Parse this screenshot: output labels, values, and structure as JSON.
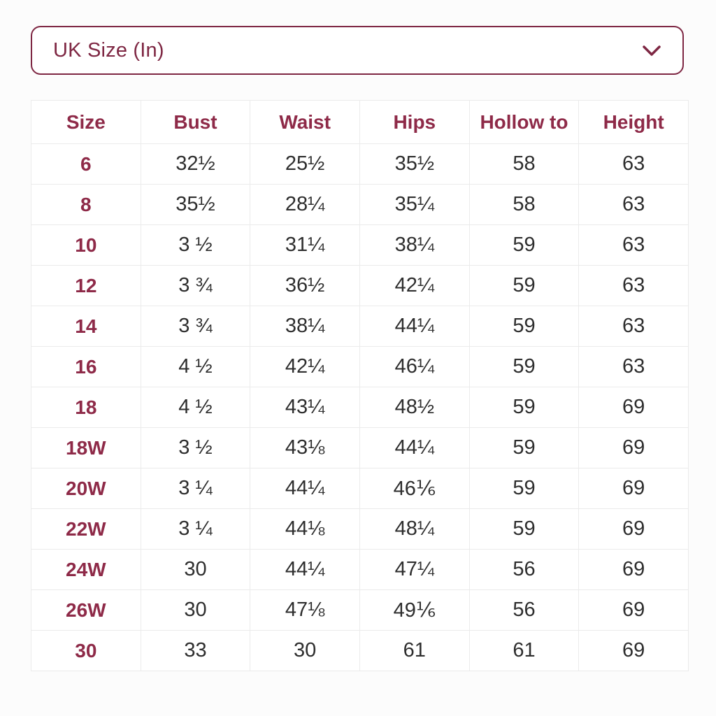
{
  "dropdown": {
    "label": "UK Size (In)",
    "chevron_icon": "chevron-down-icon"
  },
  "table": {
    "headers": [
      "Size",
      "Bust",
      "Waist",
      "Hips",
      "Hollow to",
      "Height"
    ],
    "rows": [
      [
        "6",
        "32½",
        "25½",
        "35½",
        "58",
        "63"
      ],
      [
        "8",
        "35½",
        "28¼",
        "35¼",
        "58",
        "63"
      ],
      [
        "10",
        "3 ½",
        "31¼",
        "38¼",
        "59",
        "63"
      ],
      [
        "12",
        "3 ¾",
        "36½",
        "42¼",
        "59",
        "63"
      ],
      [
        "14",
        "3 ¾",
        "38¼",
        "44¼",
        "59",
        "63"
      ],
      [
        "16",
        "4 ½",
        "42¼",
        "46¼",
        "59",
        "63"
      ],
      [
        "18",
        "4 ½",
        "43¼",
        "48½",
        "59",
        "69"
      ],
      [
        "18W",
        "3 ½",
        "43⅛",
        "44¼",
        "59",
        "69"
      ],
      [
        "20W",
        "3 ¼",
        "44¼",
        "46⅙",
        "59",
        "69"
      ],
      [
        "22W",
        "3 ¼",
        "44⅛",
        "48¼",
        "59",
        "69"
      ],
      [
        "24W",
        "30",
        "44¼",
        "47¼",
        "56",
        "69"
      ],
      [
        "26W",
        "30",
        "47⅛",
        "49⅙",
        "56",
        "69"
      ],
      [
        "30",
        "33",
        "30",
        "61",
        "61",
        "69"
      ]
    ]
  },
  "colors": {
    "accent_maroon": "#8e2a48",
    "dropdown_border": "#7e2743",
    "grid_line": "#ebebeb",
    "data_text": "#2e2e2e",
    "background": "#fcfcfc"
  }
}
